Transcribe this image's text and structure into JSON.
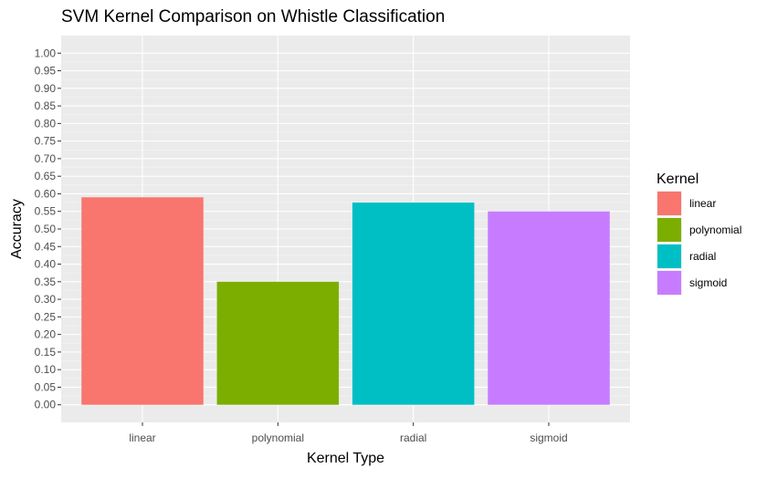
{
  "chart_data": {
    "type": "bar",
    "title": "SVM Kernel Comparison on Whistle Classification",
    "xlabel": "Kernel Type",
    "ylabel": "Accuracy",
    "categories": [
      "linear",
      "polynomial",
      "radial",
      "sigmoid"
    ],
    "values": [
      0.59,
      0.35,
      0.575,
      0.55
    ],
    "colors": [
      "#F8766D",
      "#7CAE00",
      "#00BFC4",
      "#C77CFF"
    ],
    "ylim": [
      0,
      1
    ],
    "yticks": [
      "0.00",
      "0.05",
      "0.10",
      "0.15",
      "0.20",
      "0.25",
      "0.30",
      "0.35",
      "0.40",
      "0.45",
      "0.50",
      "0.55",
      "0.60",
      "0.65",
      "0.70",
      "0.75",
      "0.80",
      "0.85",
      "0.90",
      "0.95",
      "1.00"
    ],
    "grid": true,
    "legend": {
      "title": "Kernel",
      "position": "right",
      "entries": [
        "linear",
        "polynomial",
        "radial",
        "sigmoid"
      ]
    }
  }
}
